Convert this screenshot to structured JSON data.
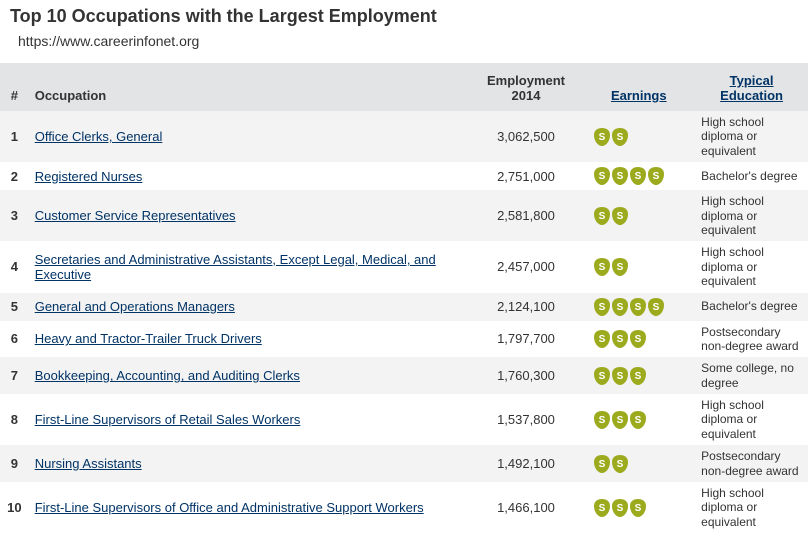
{
  "title": "Top 10 Occupations with the Largest Employment",
  "subtitle": "https://www.careerinfonet.org",
  "columns": {
    "rank": "#",
    "occupation": "Occupation",
    "employment": "Employment 2014",
    "earnings": "Earnings",
    "education": "Typical Education "
  },
  "link_color": "#003366",
  "coin_color": "#9caa1e",
  "header_bg": "#e3e4e5",
  "row_odd_bg": "#f3f3f3",
  "row_even_bg": "#ffffff",
  "rows": [
    {
      "rank": 1,
      "occupation": "Office Clerks, General",
      "employment": "3,062,500",
      "earnings_level": 2,
      "education": "High school diploma or equivalent"
    },
    {
      "rank": 2,
      "occupation": "Registered Nurses",
      "employment": "2,751,000",
      "earnings_level": 4,
      "education": "Bachelor's degree"
    },
    {
      "rank": 3,
      "occupation": "Customer Service Representatives",
      "employment": "2,581,800",
      "earnings_level": 2,
      "education": "High school diploma or equivalent"
    },
    {
      "rank": 4,
      "occupation": "Secretaries and Administrative Assistants, Except Legal, Medical, and Executive",
      "employment": "2,457,000",
      "earnings_level": 2,
      "education": "High school diploma or equivalent"
    },
    {
      "rank": 5,
      "occupation": "General and Operations Managers",
      "employment": "2,124,100",
      "earnings_level": 4,
      "education": "Bachelor's degree"
    },
    {
      "rank": 6,
      "occupation": "Heavy and Tractor-Trailer Truck Drivers",
      "employment": "1,797,700",
      "earnings_level": 3,
      "education": "Postsecondary non-degree award"
    },
    {
      "rank": 7,
      "occupation": "Bookkeeping, Accounting, and Auditing Clerks",
      "employment": "1,760,300",
      "earnings_level": 3,
      "education": "Some college, no degree"
    },
    {
      "rank": 8,
      "occupation": "First-Line Supervisors of Retail Sales Workers",
      "employment": "1,537,800",
      "earnings_level": 3,
      "education": "High school diploma or equivalent"
    },
    {
      "rank": 9,
      "occupation": "Nursing Assistants",
      "employment": "1,492,100",
      "earnings_level": 2,
      "education": "Postsecondary non-degree award"
    },
    {
      "rank": 10,
      "occupation": "First-Line Supervisors of Office and Administrative Support Workers",
      "employment": "1,466,100",
      "earnings_level": 3,
      "education": "High school diploma or equivalent"
    }
  ]
}
